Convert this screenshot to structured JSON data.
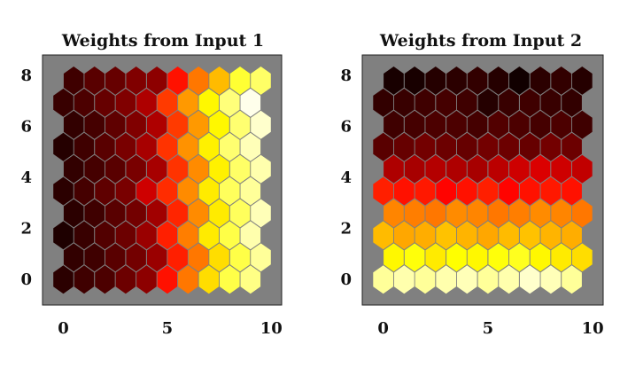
{
  "colors": {
    "panel_bg": "#808080",
    "frame": "#222222"
  },
  "chart_data": [
    {
      "type": "heatmap",
      "title": "Weights from Input 1",
      "xlim": [
        -1,
        10.5
      ],
      "ylim": [
        -1,
        8.8
      ],
      "xticks": [
        "0",
        "5",
        "10"
      ],
      "xtick_values": [
        0,
        5,
        10
      ],
      "yticks": [
        "0",
        "2",
        "4",
        "6",
        "8"
      ],
      "ytick_values": [
        0,
        2,
        4,
        6,
        8
      ],
      "grid": "hexagonal",
      "columns": 10,
      "rows": 10,
      "colormap": "hot",
      "values": [
        [
          0.05,
          0.08,
          0.1,
          0.15,
          0.2,
          0.4,
          0.55,
          0.7,
          0.82,
          0.88
        ],
        [
          0.06,
          0.08,
          0.12,
          0.16,
          0.22,
          0.42,
          0.55,
          0.7,
          0.82,
          0.9
        ],
        [
          0.03,
          0.07,
          0.11,
          0.15,
          0.22,
          0.42,
          0.56,
          0.72,
          0.82,
          0.92
        ],
        [
          0.05,
          0.08,
          0.12,
          0.16,
          0.23,
          0.43,
          0.58,
          0.72,
          0.84,
          0.93
        ],
        [
          0.05,
          0.09,
          0.13,
          0.17,
          0.3,
          0.44,
          0.58,
          0.72,
          0.84,
          0.9
        ],
        [
          0.06,
          0.09,
          0.12,
          0.17,
          0.24,
          0.45,
          0.58,
          0.73,
          0.85,
          0.92
        ],
        [
          0.04,
          0.08,
          0.12,
          0.17,
          0.24,
          0.45,
          0.59,
          0.73,
          0.86,
          0.93
        ],
        [
          0.06,
          0.09,
          0.13,
          0.18,
          0.25,
          0.46,
          0.6,
          0.74,
          0.86,
          0.95
        ],
        [
          0.07,
          0.1,
          0.14,
          0.18,
          0.25,
          0.46,
          0.6,
          0.74,
          0.87,
          0.98
        ],
        [
          0.08,
          0.12,
          0.14,
          0.18,
          0.2,
          0.4,
          0.55,
          0.65,
          0.8,
          0.85
        ]
      ]
    },
    {
      "type": "heatmap",
      "title": "Weights from Input 2",
      "xlim": [
        -1,
        10.5
      ],
      "ylim": [
        -1,
        8.8
      ],
      "xticks": [
        "0",
        "5",
        "10"
      ],
      "xtick_values": [
        0,
        5,
        10
      ],
      "yticks": [
        "0",
        "2",
        "4",
        "6",
        "8"
      ],
      "ytick_values": [
        0,
        2,
        4,
        6,
        8
      ],
      "grid": "hexagonal",
      "columns": 10,
      "rows": 10,
      "colormap": "hot",
      "values": [
        [
          0.9,
          0.92,
          0.9,
          0.92,
          0.93,
          0.9,
          0.92,
          0.95,
          0.93,
          0.9
        ],
        [
          0.74,
          0.76,
          0.72,
          0.75,
          0.74,
          0.76,
          0.78,
          0.74,
          0.72,
          0.7
        ],
        [
          0.65,
          0.62,
          0.63,
          0.66,
          0.64,
          0.62,
          0.65,
          0.66,
          0.64,
          0.63
        ],
        [
          0.57,
          0.56,
          0.55,
          0.58,
          0.57,
          0.55,
          0.56,
          0.58,
          0.57,
          0.55
        ],
        [
          0.42,
          0.4,
          0.41,
          0.38,
          0.4,
          0.42,
          0.38,
          0.4,
          0.41,
          0.4
        ],
        [
          0.25,
          0.24,
          0.26,
          0.25,
          0.24,
          0.27,
          0.3,
          0.32,
          0.3,
          0.28
        ],
        [
          0.12,
          0.14,
          0.16,
          0.15,
          0.14,
          0.16,
          0.15,
          0.14,
          0.16,
          0.15
        ],
        [
          0.08,
          0.09,
          0.1,
          0.1,
          0.09,
          0.11,
          0.1,
          0.09,
          0.1,
          0.08
        ],
        [
          0.06,
          0.07,
          0.08,
          0.09,
          0.08,
          0.04,
          0.07,
          0.08,
          0.07,
          0.06
        ],
        [
          0.02,
          0.02,
          0.04,
          0.05,
          0.06,
          0.04,
          0.01,
          0.05,
          0.06,
          0.04
        ]
      ]
    }
  ]
}
